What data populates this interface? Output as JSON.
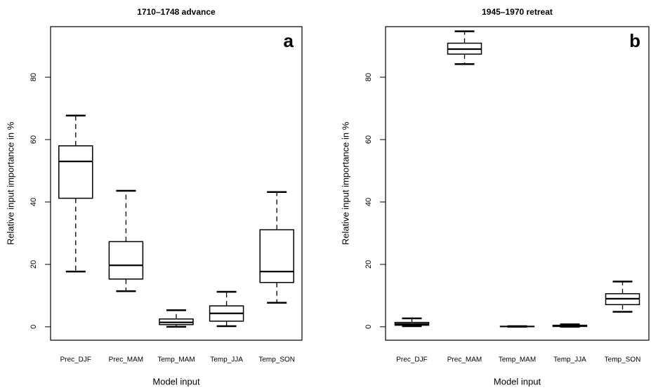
{
  "chart_data": [
    {
      "type": "box",
      "title": "1710–1748 advance",
      "panel_label": "a",
      "y_label": "Relative input importance in %",
      "x_label": "Model input",
      "categories": [
        "Prec_DJF",
        "Prec_MAM",
        "Temp_MAM",
        "Temp_JJA",
        "Temp_SON"
      ],
      "boxes": [
        {
          "min": 17.7,
          "q1": 41.2,
          "median": 53,
          "q3": 58,
          "max": 67.7
        },
        {
          "min": 11.4,
          "q1": 15.3,
          "median": 19.7,
          "q3": 27.3,
          "max": 43.6
        },
        {
          "min": 0,
          "q1": 0.7,
          "median": 1.4,
          "q3": 2.5,
          "max": 5.3
        },
        {
          "min": 0.2,
          "q1": 1.8,
          "median": 4.3,
          "q3": 6.7,
          "max": 11.2
        },
        {
          "min": 7.7,
          "q1": 14.2,
          "median": 17.7,
          "q3": 31.1,
          "max": 43.2
        }
      ],
      "color": "#000000",
      "ylim": [
        -4.3,
        96.2
      ],
      "yticks": [
        0,
        20,
        40,
        60,
        80
      ]
    },
    {
      "type": "box",
      "title": "1945–1970 retreat",
      "panel_label": "b",
      "y_label": "Relative input importance in %",
      "x_label": "Model input",
      "categories": [
        "Prec_DJF",
        "Prec_MAM",
        "Temp_MAM",
        "Temp_JJA",
        "Temp_SON"
      ],
      "boxes": [
        {
          "min": 0.2,
          "q1": 0.5,
          "median": 0.9,
          "q3": 1.4,
          "max": 2.7
        },
        {
          "min": 84.2,
          "q1": 87.4,
          "median": 89,
          "q3": 90.9,
          "max": 94.7
        },
        {
          "min": 0,
          "q1": 0.05,
          "median": 0.1,
          "q3": 0.15,
          "max": 0.2
        },
        {
          "min": 0,
          "q1": 0.1,
          "median": 0.3,
          "q3": 0.5,
          "max": 0.8
        },
        {
          "min": 4.8,
          "q1": 7.1,
          "median": 9,
          "q3": 10.6,
          "max": 14.5
        }
      ],
      "color": "#000000",
      "ylim": [
        -4.3,
        96.2
      ],
      "yticks": [
        0,
        20,
        40,
        60,
        80
      ]
    }
  ]
}
